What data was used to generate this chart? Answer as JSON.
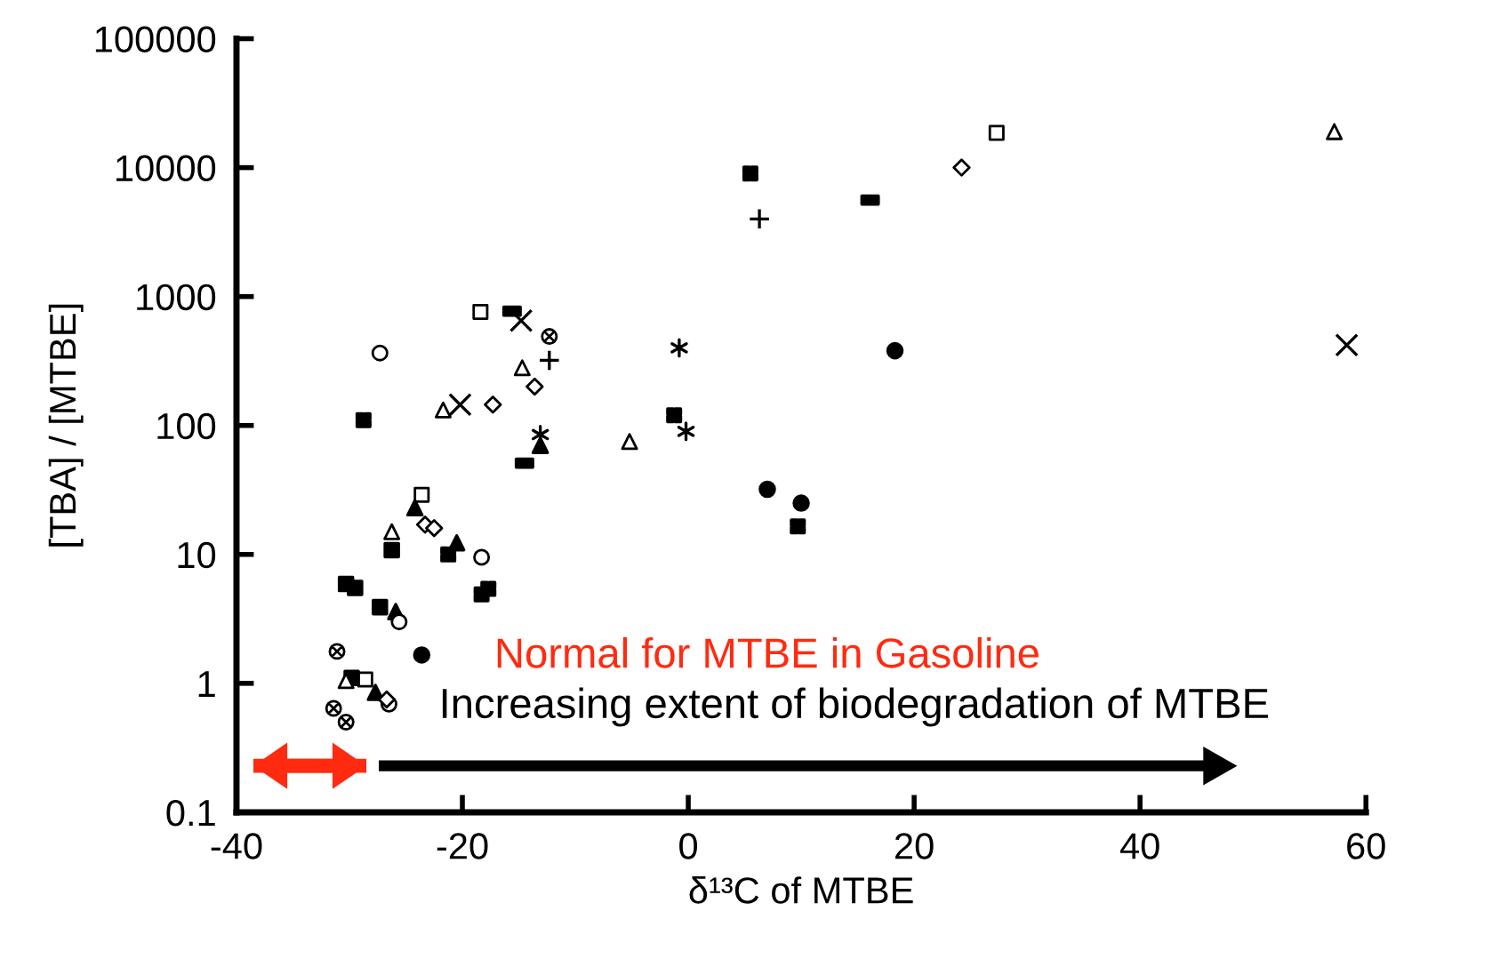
{
  "chart_data": {
    "type": "scatter",
    "xlabel": "δ¹³C of MTBE",
    "ylabel": "[TBA] / [MTBE]",
    "log": "y",
    "xlim": [
      -40,
      60
    ],
    "ylim": [
      0.1,
      100000
    ],
    "xticks": [
      -40,
      -20,
      0,
      20,
      40,
      60
    ],
    "yticks": [
      0.1,
      1,
      10,
      100,
      1000,
      10000,
      100000
    ],
    "grid": false,
    "annotations": [
      "Normal for MTBE in Gasoline",
      "Increasing extent of biodegradation of MTBE"
    ],
    "series": [
      {
        "color": "#000000",
        "marker": "square",
        "x": [
          -18.4,
          -23.6,
          -28.6,
          27.3
        ],
        "values": [
          760,
          29,
          1.07,
          18600
        ]
      },
      {
        "color": "#000000",
        "marker": "square",
        "x": [
          -26.25,
          -30.3,
          -29.5,
          -27.3,
          -29.8
        ],
        "values": [
          10.8,
          5.9,
          5.5,
          3.9,
          1.1
        ]
      },
      {
        "color": "#000000",
        "marker": "triangle",
        "x": [
          -14.7,
          -21.7,
          -26.25,
          -30.3,
          -5.2,
          57.2
        ],
        "values": [
          280,
          132,
          15,
          1.05,
          75,
          19000
        ]
      },
      {
        "color": "#000000",
        "marker": "triangle",
        "x": [
          -13.1,
          -24.2,
          -20.5,
          -25.9,
          -27.7
        ],
        "values": [
          70,
          23,
          12.3,
          3.6,
          0.85
        ]
      },
      {
        "color": "#000000",
        "marker": "circle",
        "x": [
          -27.3,
          -18.3,
          -25.6,
          -26.5
        ],
        "values": [
          365,
          9.5,
          3.0,
          0.69
        ]
      },
      {
        "color": "#000000",
        "marker": "circle",
        "x": [
          -23.6,
          18.3,
          7.0,
          10.0
        ],
        "values": [
          1.66,
          380,
          32,
          25
        ]
      },
      {
        "color": "#000000",
        "marker": "diamond",
        "x": [
          -13.6,
          -17.3,
          -23.3,
          -22.5,
          -26.7,
          24.2
        ],
        "values": [
          200,
          145,
          17,
          16,
          0.75,
          10000
        ]
      },
      {
        "color": "#000000",
        "marker": "cross",
        "x": [
          -14.8,
          -20.2,
          58.3
        ],
        "values": [
          650,
          145,
          420
        ]
      },
      {
        "color": "#000000",
        "marker": "cross",
        "x": [
          -12.3,
          6.3
        ],
        "values": [
          320,
          4000
        ]
      },
      {
        "color": "#000000",
        "marker": "square",
        "x": [
          -15.6,
          -14.5,
          16.1
        ],
        "values": [
          770,
          51,
          5600
        ]
      },
      {
        "color": "#000000",
        "marker": "cross",
        "x": [
          -12.3,
          -31.1,
          -31.4,
          -30.3
        ],
        "values": [
          490,
          1.77,
          0.64,
          0.5
        ]
      },
      {
        "color": "#000000",
        "marker": "square",
        "x": [
          -28.75,
          -21.25,
          -18.3,
          -17.7,
          -1.25,
          5.5,
          9.7
        ],
        "values": [
          110,
          10,
          4.9,
          5.4,
          120,
          9000,
          16.5
        ]
      },
      {
        "color": "#000000",
        "marker": "cross",
        "x": [
          -13.1,
          -0.8,
          -0.2
        ],
        "values": [
          85,
          400,
          90
        ]
      }
    ]
  }
}
